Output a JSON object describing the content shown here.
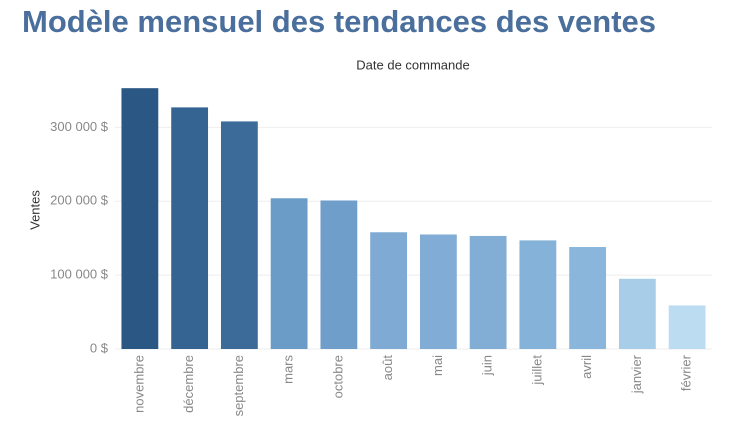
{
  "chart_data": {
    "type": "bar",
    "title": "Modèle mensuel des tendances des ventes",
    "subtitle": "Date de commande",
    "y_label": "Ventes",
    "categories": [
      "novembre",
      "décembre",
      "septembre",
      "mars",
      "octobre",
      "août",
      "mai",
      "juin",
      "juillet",
      "avril",
      "janvier",
      "février"
    ],
    "values": [
      353000,
      327000,
      308000,
      204000,
      201000,
      158000,
      155000,
      153000,
      147000,
      138000,
      95000,
      59000
    ],
    "colors": [
      "#2a5783",
      "#366492",
      "#3d6b99",
      "#6b9bc7",
      "#6e9ec9",
      "#7eaad3",
      "#80acd5",
      "#82aed6",
      "#85b2d8",
      "#89b6da",
      "#a8cde9",
      "#bcdcf2"
    ],
    "ylim": [
      0,
      360000
    ],
    "yticks": [
      {
        "value": 0,
        "label": "0 $"
      },
      {
        "value": 100000,
        "label": "100 000 $"
      },
      {
        "value": 200000,
        "label": "200 000 $"
      },
      {
        "value": 300000,
        "label": "300 000 $"
      }
    ],
    "grid": true
  }
}
